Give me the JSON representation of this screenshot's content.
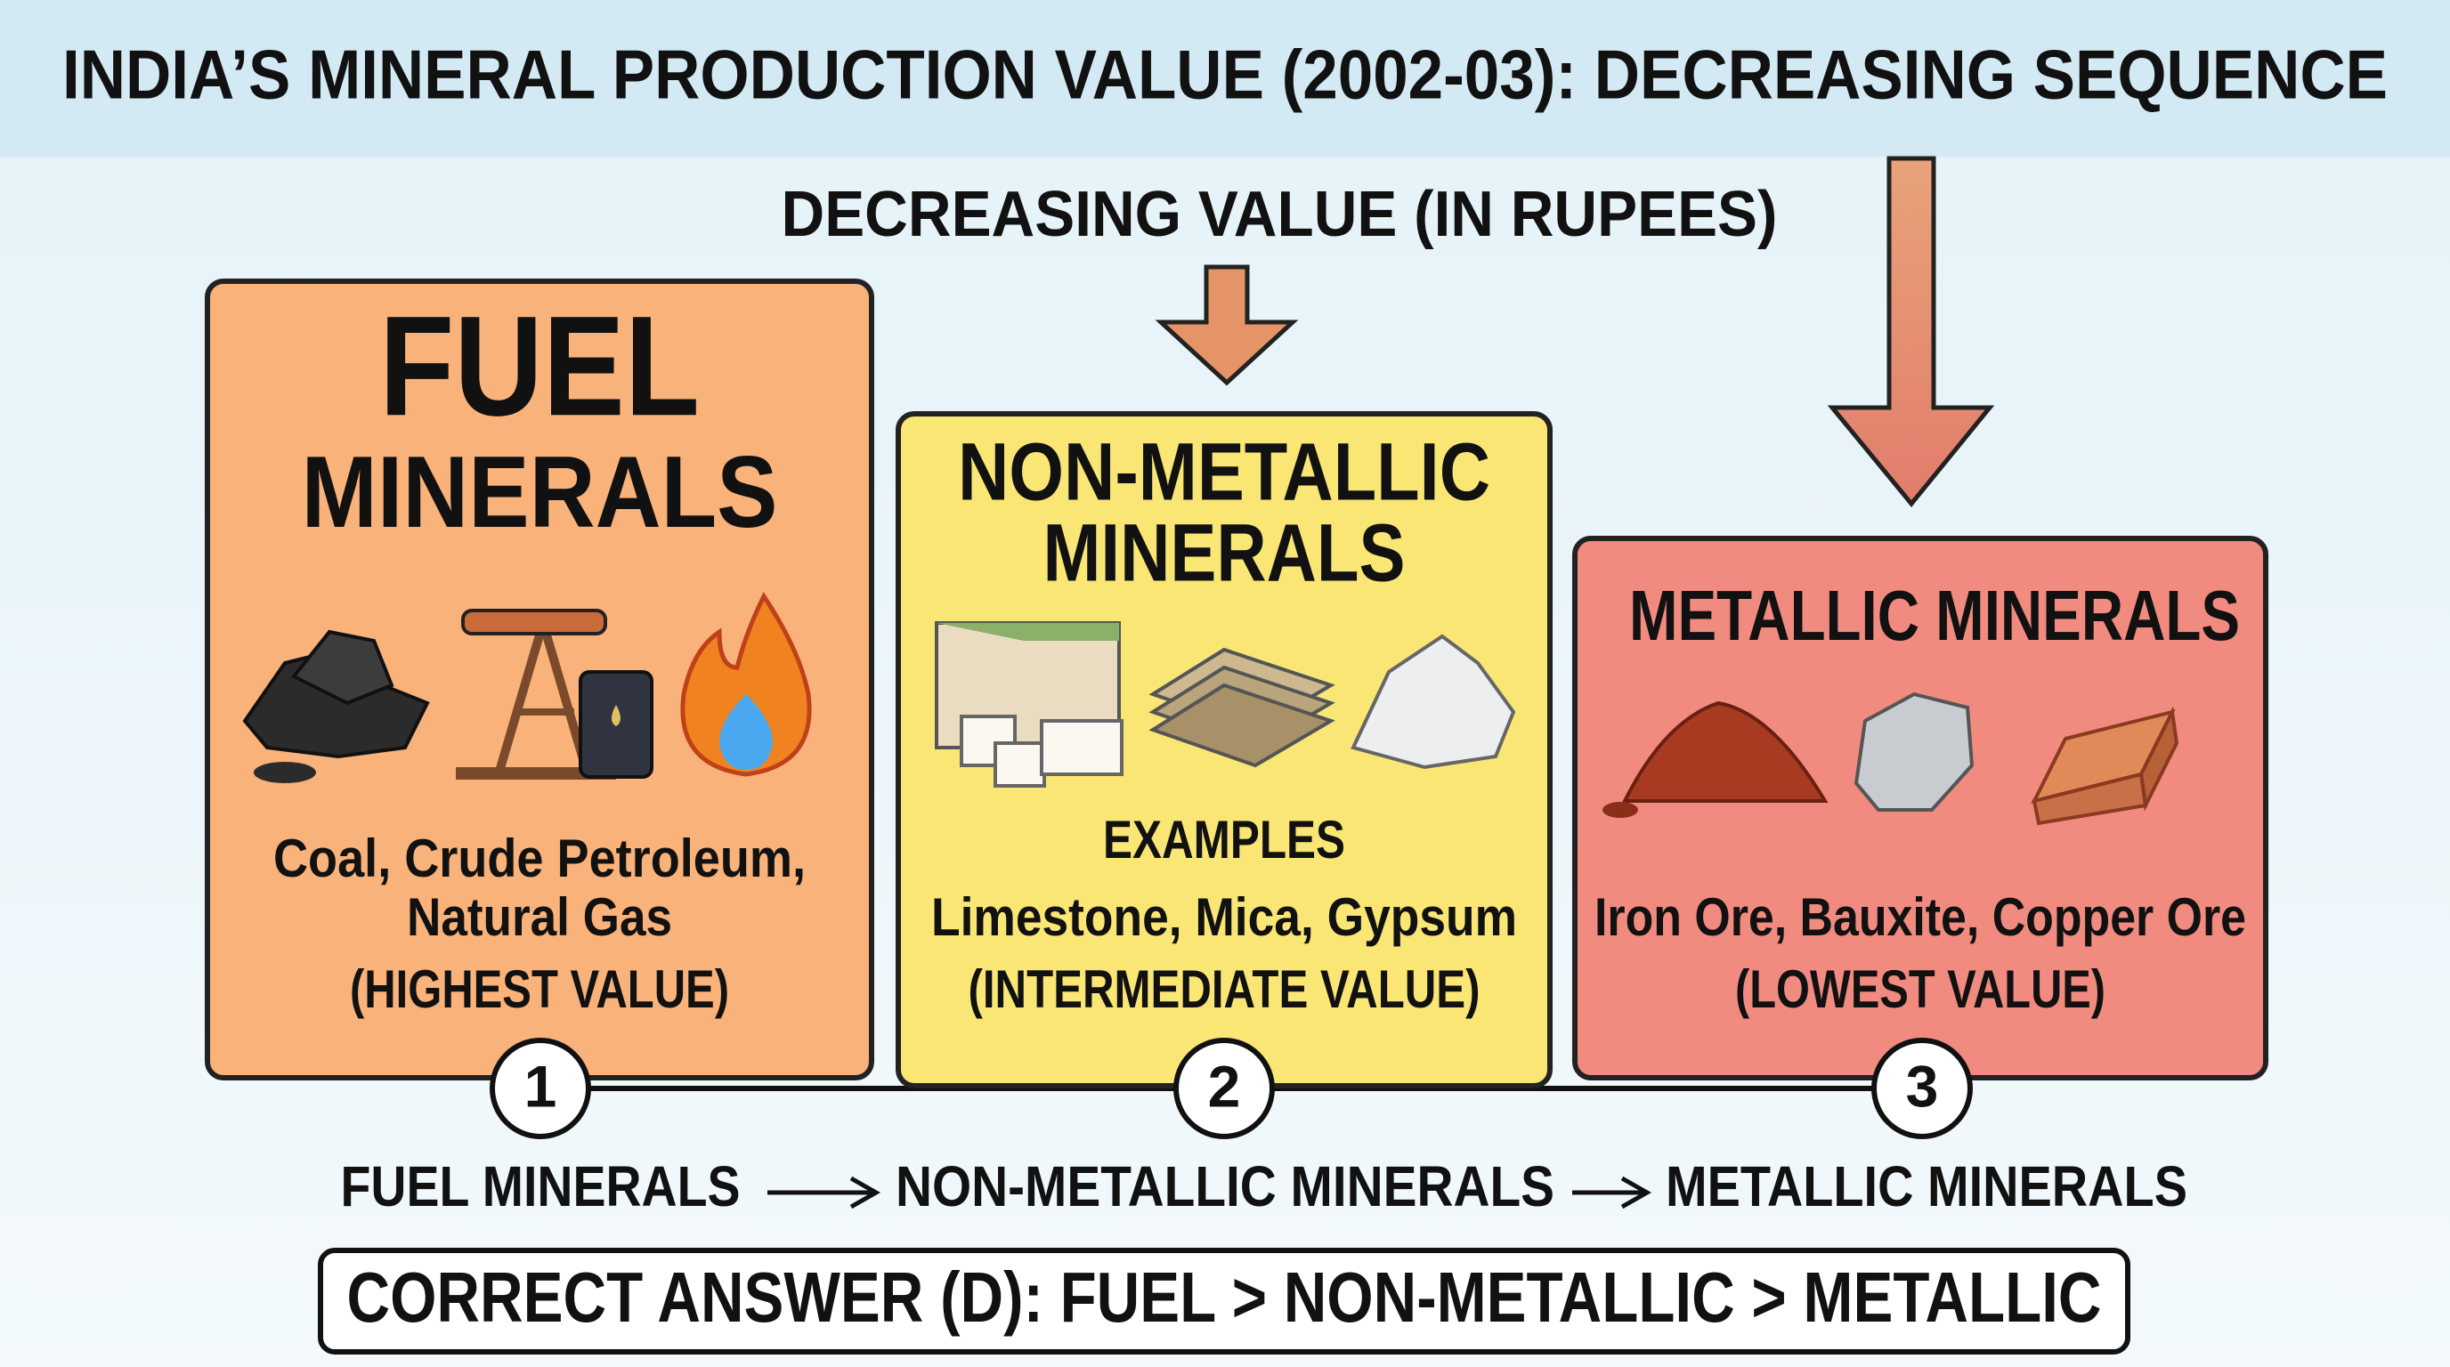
{
  "header": {
    "title": "INDIA’S MINERAL PRODUCTION VALUE (2002-03): DECREASING SEQUENCE",
    "subtitle": "DECREASING VALUE (IN RUPEES)"
  },
  "boxes": [
    {
      "title_lines": [
        "FUEL",
        "MINERALS"
      ],
      "examples": [
        "Coal, Crude Petroleum,",
        "Natural Gas"
      ],
      "note": "(HIGHEST VALUE)",
      "number": "1"
    },
    {
      "title_lines": [
        "NON-METALLIC",
        "MINERALS"
      ],
      "examples_label": "EXAMPLES",
      "examples": [
        "Limestone, Mica, Gypsum"
      ],
      "note": "(INTERMEDIATE VALUE)",
      "number": "2"
    },
    {
      "title_lines": [
        "METALLIC MINERALS"
      ],
      "examples": [
        "Iron Ore, Bauxite, Copper Ore"
      ],
      "note": "(LOWEST VALUE)",
      "number": "3"
    }
  ],
  "sequence": [
    "FUEL MINERALS",
    "NON-METALLIC MINERALS",
    "METALLIC MINERALS"
  ],
  "answer": "CORRECT ANSWER (D): FUEL > NON-METALLIC > METALLIC"
}
